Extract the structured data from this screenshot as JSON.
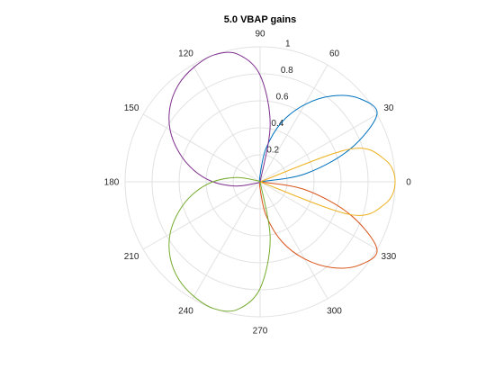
{
  "chart_data": {
    "type": "line",
    "subtype": "polar",
    "title": "5.0 VBAP gains",
    "theta_ticks": [
      "0",
      "30",
      "60",
      "90",
      "120",
      "150",
      "180",
      "210",
      "240",
      "270",
      "300",
      "330"
    ],
    "r_ticks": [
      "0.2",
      "0.4",
      "0.6",
      "0.8",
      "1"
    ],
    "rlim": [
      0,
      1
    ],
    "grid": true,
    "series": [
      {
        "color": "#0072BD",
        "peak_gain": 1.0,
        "peak_angle_deg": 30,
        "points": [
          [
            0,
            0
          ],
          [
            10,
            0.34
          ],
          [
            20,
            0.71
          ],
          [
            30,
            1.0
          ],
          [
            40,
            0.96
          ],
          [
            50,
            0.83
          ],
          [
            60,
            0.66
          ],
          [
            70,
            0.47
          ],
          [
            80,
            0.25
          ],
          [
            90,
            0.05
          ],
          [
            100,
            0
          ]
        ]
      },
      {
        "color": "#D95319",
        "peak_gain": 1.0,
        "peak_angle_deg": 330,
        "points": [
          [
            260,
            0
          ],
          [
            270,
            0.05
          ],
          [
            280,
            0.25
          ],
          [
            290,
            0.47
          ],
          [
            300,
            0.66
          ],
          [
            310,
            0.83
          ],
          [
            320,
            0.96
          ],
          [
            330,
            1.0
          ],
          [
            340,
            0.71
          ],
          [
            350,
            0.34
          ],
          [
            0,
            0
          ]
        ]
      },
      {
        "color": "#EDB120",
        "peak_gain": 1.0,
        "peak_angle_deg": 0,
        "points": [
          [
            330,
            0
          ],
          [
            340,
            0.71
          ],
          [
            350,
            0.94
          ],
          [
            0,
            1.0
          ],
          [
            10,
            0.94
          ],
          [
            20,
            0.71
          ],
          [
            30,
            0
          ]
        ]
      },
      {
        "color": "#7E2F8E",
        "peak_gain": 1.0,
        "peak_angle_deg": 110,
        "points": [
          [
            70,
            0
          ],
          [
            80,
            0.43
          ],
          [
            90,
            0.79
          ],
          [
            100,
            0.96
          ],
          [
            110,
            1.0
          ],
          [
            120,
            0.98
          ],
          [
            130,
            0.94
          ],
          [
            140,
            0.87
          ],
          [
            150,
            0.77
          ],
          [
            160,
            0.64
          ],
          [
            170,
            0.5
          ],
          [
            180,
            0.35
          ],
          [
            190,
            0.18
          ],
          [
            200,
            0.03
          ],
          [
            210,
            0
          ]
        ]
      },
      {
        "color": "#77AC30",
        "peak_gain": 1.0,
        "peak_angle_deg": 250,
        "points": [
          [
            150,
            0
          ],
          [
            160,
            0.03
          ],
          [
            170,
            0.18
          ],
          [
            180,
            0.35
          ],
          [
            190,
            0.5
          ],
          [
            200,
            0.64
          ],
          [
            210,
            0.77
          ],
          [
            220,
            0.87
          ],
          [
            230,
            0.94
          ],
          [
            240,
            0.98
          ],
          [
            250,
            1.0
          ],
          [
            260,
            0.96
          ],
          [
            270,
            0.79
          ],
          [
            280,
            0.43
          ],
          [
            290,
            0
          ]
        ]
      }
    ]
  }
}
